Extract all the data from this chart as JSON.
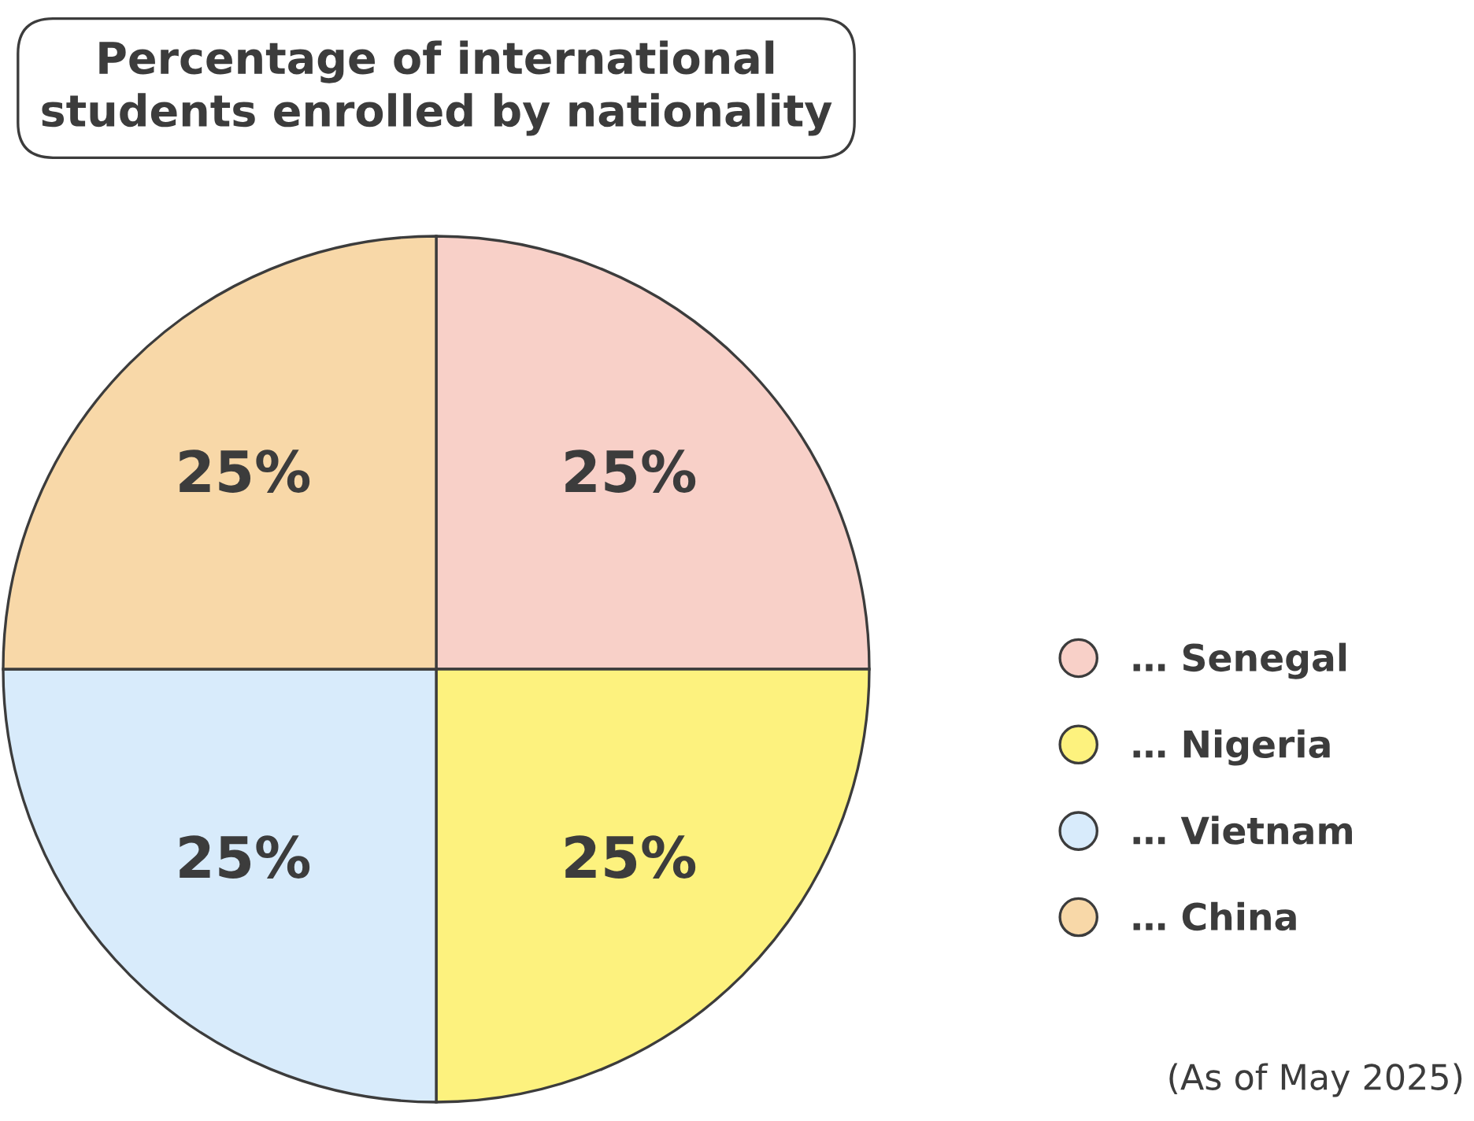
{
  "chart_data": {
    "type": "pie",
    "title": "Percentage of international\nstudents enrolled by nationality",
    "categories": [
      "… Senegal",
      "… Nigeria",
      "… Vietnam",
      "… China"
    ],
    "values": [
      25,
      25,
      25,
      25
    ],
    "colors": [
      "#f8d0c8",
      "#fdf27e",
      "#d8ebfb",
      "#f8d8a8"
    ],
    "value_labels": [
      "25%",
      "25%",
      "25%",
      "25%"
    ],
    "legend": "right",
    "annotations": [
      "(As of May 2025)"
    ]
  }
}
